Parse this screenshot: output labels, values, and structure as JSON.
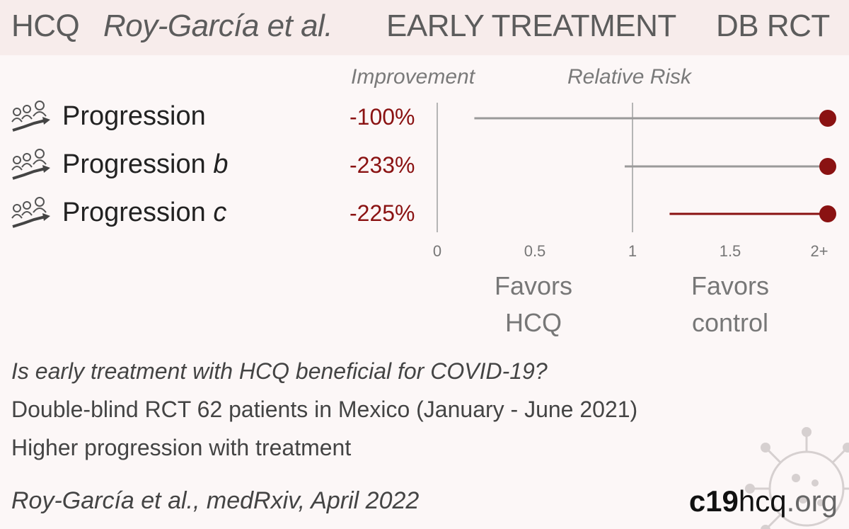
{
  "header": {
    "drug": "HCQ",
    "authors": "Roy-García et al.",
    "stage": "EARLY TREATMENT",
    "design": "DB RCT"
  },
  "column_headers": {
    "improvement": "Improvement",
    "relative_risk": "Relative Risk"
  },
  "favors": {
    "left_line1": "Favors",
    "left_line2": "HCQ",
    "right_line1": "Favors",
    "right_line2": "control"
  },
  "description": {
    "question": "Is early treatment with HCQ beneficial for COVID-19?",
    "design": "Double-blind RCT 62 patients in Mexico (January - June 2021)",
    "result": "Higher progression with treatment"
  },
  "citation": "Roy-García et al., medRxiv, April 2022",
  "brand": {
    "part1": "c19",
    "part2": "hcq",
    "part3": ".org"
  },
  "colors": {
    "accent": "#8a1212",
    "ci_gray": "#9a9a9a",
    "axis": "#b5b5b5"
  },
  "row_icon": "patients-progression-icon",
  "chart_data": {
    "type": "forest",
    "xlim": [
      0,
      2
    ],
    "ticks": [
      {
        "value": 0,
        "label": "0"
      },
      {
        "value": 0.5,
        "label": "0.5"
      },
      {
        "value": 1,
        "label": "1"
      },
      {
        "value": 1.5,
        "label": "1.5"
      },
      {
        "value": 2,
        "label": "2+"
      }
    ],
    "rows": [
      {
        "label": "Progression",
        "suffix": "",
        "improvement": "-100%",
        "rr": 2.0,
        "ci_low": 0.19,
        "ci_high": 2.0,
        "significant": false
      },
      {
        "label": "Progression",
        "suffix": "b",
        "improvement": "-233%",
        "rr": 2.0,
        "ci_low": 0.96,
        "ci_high": 2.0,
        "significant": false
      },
      {
        "label": "Progression",
        "suffix": "c",
        "improvement": "-225%",
        "rr": 2.0,
        "ci_low": 1.19,
        "ci_high": 2.0,
        "significant": true
      }
    ]
  }
}
